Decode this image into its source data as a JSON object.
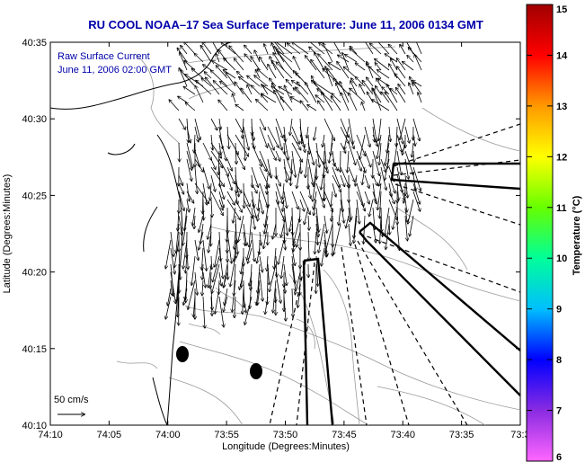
{
  "header": {
    "title": "RU COOL  NOAA–17  Sea Surface Temperature:  June 11, 2006 0134 GMT"
  },
  "overlay": {
    "line1": "Raw Surface Current",
    "line2": "June 11, 2006 02:00 GMT"
  },
  "scale": {
    "label": "50 cm/s"
  },
  "axes": {
    "xlabel": "Longitude (Degrees:Minutes)",
    "ylabel": "Latitude (Degrees:Minutes)",
    "xticks": [
      "74:10",
      "74:05",
      "74:00",
      "73:55",
      "73:50",
      "73:45",
      "73:40",
      "73:35",
      "73:3"
    ],
    "yticks": [
      "40:35",
      "40:30",
      "40:25",
      "40:20",
      "40:15",
      "40:10"
    ]
  },
  "colorbar": {
    "label": "Temperature (°C)",
    "ticks": [
      "15",
      "14",
      "13",
      "12",
      "11",
      "10",
      "9",
      "8",
      "7",
      "6"
    ],
    "colors": [
      "#ff66ff",
      "#8a2be2",
      "#0000ff",
      "#00bfff",
      "#00ff99",
      "#66ff00",
      "#ffff00",
      "#ff9900",
      "#ff0000",
      "#a00000"
    ]
  }
}
